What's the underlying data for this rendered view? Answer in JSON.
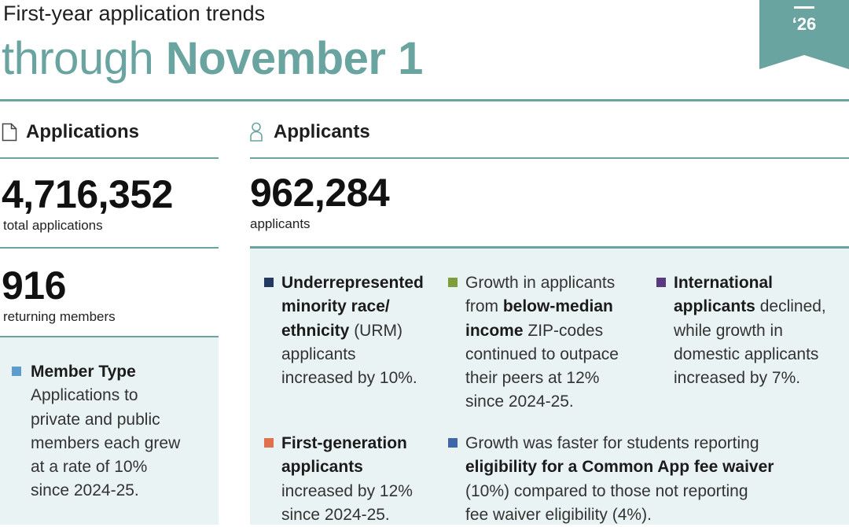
{
  "header": {
    "title_line1": "First-year application trends",
    "title_through": "through ",
    "title_date": "November 1",
    "year_badge": "‘26"
  },
  "colors": {
    "teal": "#6aa4a1",
    "panel_bg": "#eaf3f3",
    "member_type_bullet": "#5b9ccc",
    "urm_bullet": "#23395f",
    "income_bullet": "#7e9d3b",
    "international_bullet": "#5a3a7e",
    "first_gen_bullet": "#e0714b",
    "fee_waiver_bullet": "#3f66a8"
  },
  "applications": {
    "title": "Applications",
    "icon": "document-icon",
    "total": "4,716,352",
    "total_caption": "total applications",
    "returning": "916",
    "returning_caption": "returning members",
    "member_type": {
      "label": "Member Type",
      "line1": "Applications to",
      "line2": "private and public",
      "line3": "members each grew",
      "line4": "at a rate of 10%",
      "line5": "since 2024-25."
    }
  },
  "applicants": {
    "title": "Applicants",
    "icon": "person-icon",
    "total": "962,284",
    "total_caption": "applicants",
    "urm": {
      "bold1": "Underrepresented",
      "bold2": "minority race/",
      "bold3": "ethnicity",
      "rest3": " (URM)",
      "line4": "applicants",
      "line5": "increased by 10%."
    },
    "income": {
      "line1": "Growth in applicants",
      "pre2": "from ",
      "bold2": "below-median",
      "bold3": "income",
      "rest3": " ZIP-codes",
      "line4": "continued to outpace",
      "line5": "their peers at 12%",
      "line6": "since 2024-25."
    },
    "international": {
      "bold1": "International",
      "bold2": "applicants",
      "rest2": " declined,",
      "line3": "while growth in",
      "line4": "domestic applicants",
      "line5": "increased by 7%."
    },
    "first_gen": {
      "bold1": "First-generation",
      "bold2": "applicants",
      "line3": "increased by 12%",
      "line4": "since 2024-25."
    },
    "fee_waiver": {
      "line1": "Growth was faster for students reporting",
      "bold2": "eligibility for a Common App fee waiver",
      "line3": "(10%) compared to those not reporting",
      "line4": "fee waiver eligibility (4%)."
    }
  }
}
